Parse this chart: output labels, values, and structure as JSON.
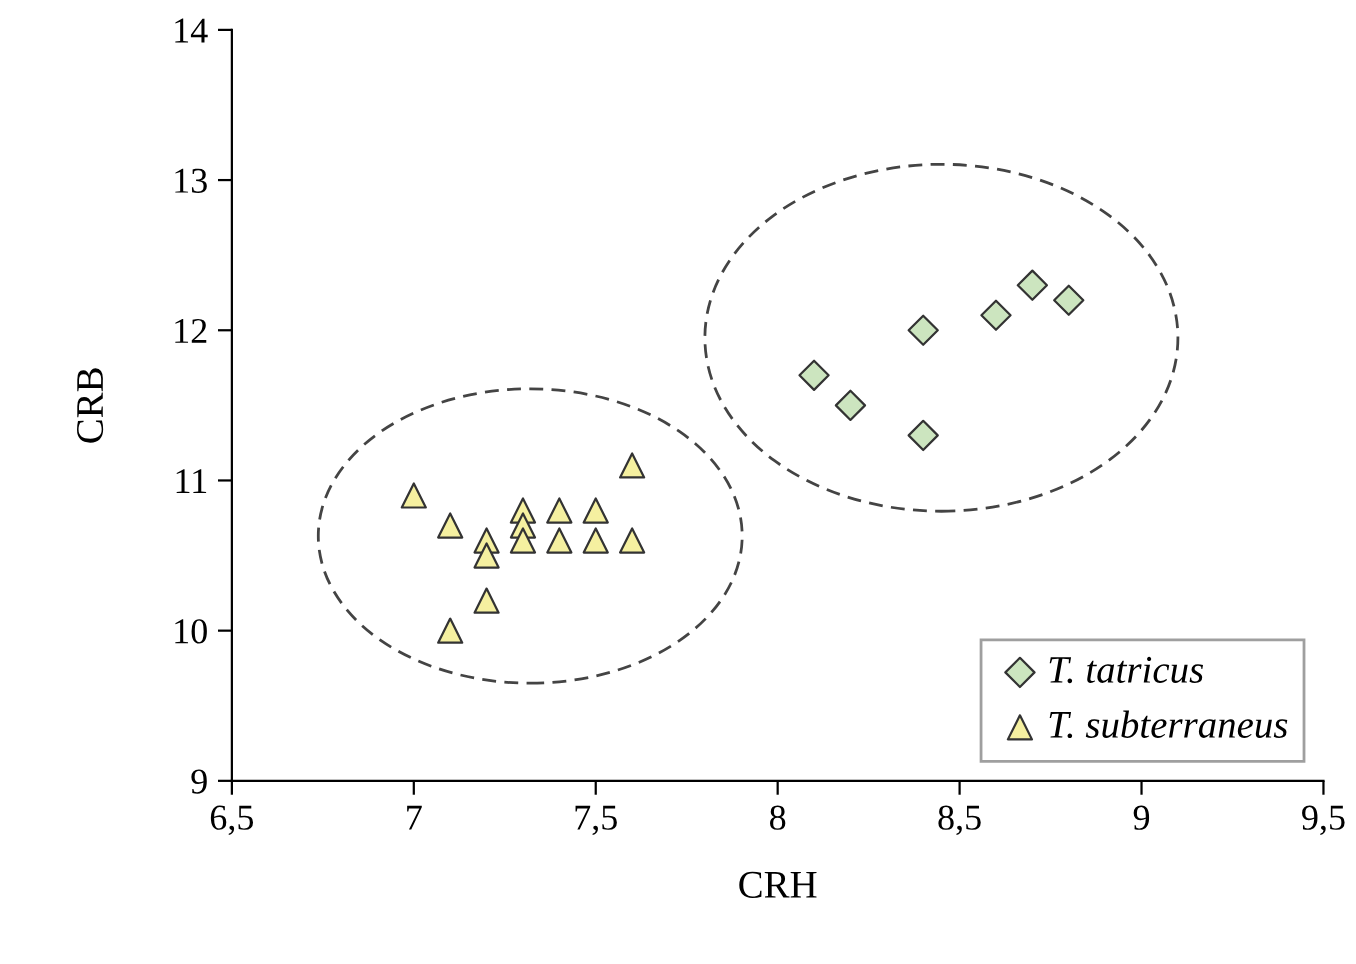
{
  "chart_data": {
    "type": "scatter",
    "xlabel": "CRH",
    "ylabel": "CRB",
    "xlim": [
      6.5,
      9.5
    ],
    "xticks": [
      {
        "value": 6.5,
        "label": "6,5"
      },
      7,
      {
        "value": 7.5,
        "label": "7,5"
      },
      8,
      {
        "value": 8.5,
        "label": "8,5"
      },
      9,
      {
        "value": 9.5,
        "label": "9,5"
      }
    ],
    "ylim": [
      9,
      14
    ],
    "yticks": [
      9,
      10,
      11,
      12,
      13,
      14
    ],
    "grid": false,
    "legend": "bottom right",
    "series": [
      {
        "name": "T. tatricus",
        "color": "#cce5bf",
        "marker": "diamond",
        "x": [
          8.1,
          8.2,
          8.4,
          8.4,
          8.6,
          8.7,
          8.8
        ],
        "values": [
          11.7,
          11.5,
          12.0,
          11.3,
          12.1,
          12.3,
          12.2
        ]
      },
      {
        "name": "T. subterraneus",
        "color": "#f5f0a0",
        "marker": "triangle",
        "x": [
          7.0,
          7.1,
          7.1,
          7.2,
          7.2,
          7.2,
          7.3,
          7.3,
          7.3,
          7.4,
          7.4,
          7.5,
          7.5,
          7.6,
          7.6
        ],
        "values": [
          10.9,
          10.7,
          10.0,
          10.6,
          10.5,
          10.2,
          10.8,
          10.7,
          10.6,
          10.8,
          10.6,
          10.8,
          10.6,
          11.1,
          10.6
        ]
      }
    ]
  }
}
